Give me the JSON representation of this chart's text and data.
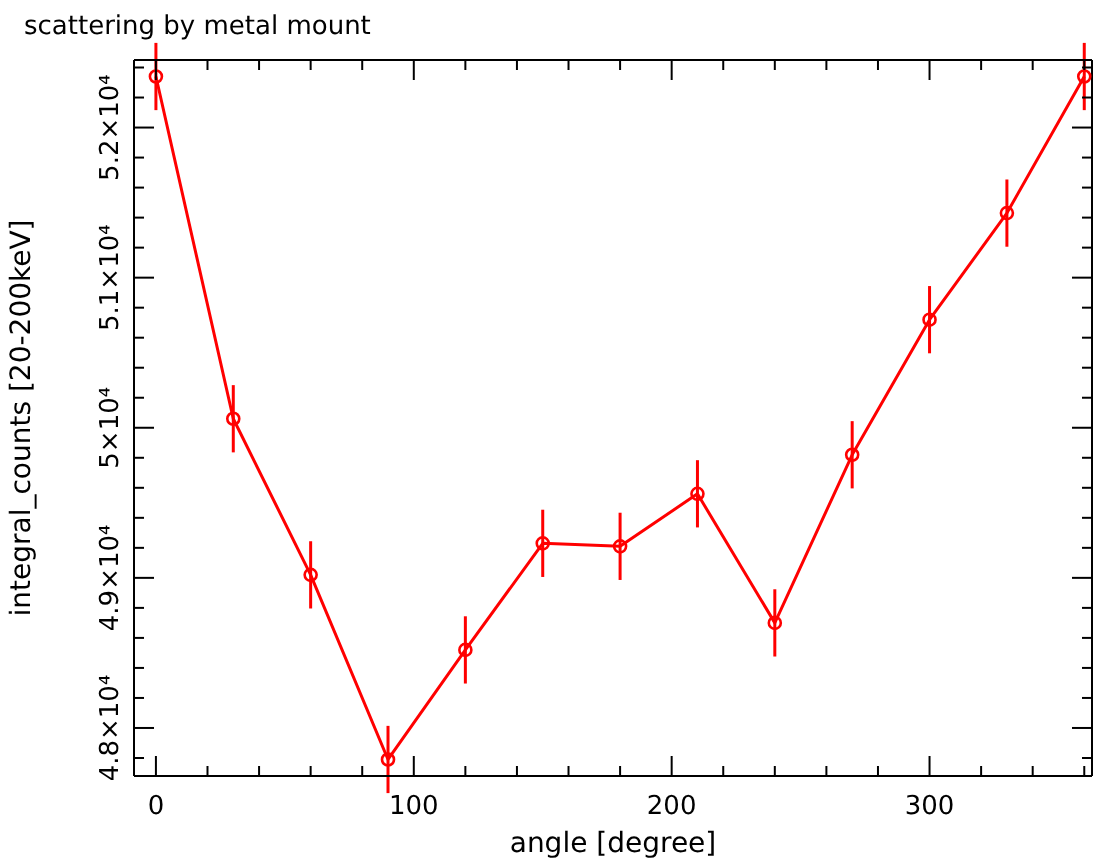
{
  "chart_data": {
    "type": "line",
    "title": "scattering by metal mount",
    "xlabel": "angle [degree]",
    "ylabel": "integral_counts [20-200keV]",
    "x": [
      0,
      30,
      60,
      90,
      120,
      150,
      180,
      210,
      240,
      270,
      300,
      330,
      360
    ],
    "series": [
      {
        "color": "#ff0000",
        "values": [
          52340,
          50060,
          49020,
          47790,
          48520,
          49230,
          49210,
          49560,
          48700,
          49820,
          50720,
          51430,
          52340
        ],
        "errors": [
          224,
          224,
          224,
          224,
          224,
          224,
          224,
          224,
          224,
          224,
          224,
          224,
          224
        ]
      }
    ],
    "xlim": [
      -8.5,
      363
    ],
    "xticks": [
      0,
      {
        "value": 20,
        "label": null
      },
      {
        "value": 40,
        "label": null
      },
      {
        "value": 60,
        "label": null
      },
      {
        "value": 80,
        "label": null
      },
      100,
      {
        "value": 120,
        "label": null
      },
      {
        "value": 140,
        "label": null
      },
      {
        "value": 160,
        "label": null
      },
      {
        "value": 180,
        "label": null
      },
      200,
      {
        "value": 220,
        "label": null
      },
      {
        "value": 240,
        "label": null
      },
      {
        "value": 260,
        "label": null
      },
      {
        "value": 280,
        "label": null
      },
      300,
      {
        "value": 320,
        "label": null
      },
      {
        "value": 340,
        "label": null
      },
      {
        "value": 360,
        "label": null
      }
    ],
    "ylim": [
      47680,
      52450
    ],
    "yticks": [
      {
        "value": 47800,
        "label": null
      },
      {
        "value": 48000,
        "label": "4.8×10⁴"
      },
      {
        "value": 48200,
        "label": null
      },
      {
        "value": 48400,
        "label": null
      },
      {
        "value": 48600,
        "label": null
      },
      {
        "value": 48800,
        "label": null
      },
      {
        "value": 49000,
        "label": "4.9×10⁴"
      },
      {
        "value": 49200,
        "label": null
      },
      {
        "value": 49400,
        "label": null
      },
      {
        "value": 49600,
        "label": null
      },
      {
        "value": 49800,
        "label": null
      },
      {
        "value": 50000,
        "label": "5×10⁴"
      },
      {
        "value": 50200,
        "label": null
      },
      {
        "value": 50400,
        "label": null
      },
      {
        "value": 50600,
        "label": null
      },
      {
        "value": 50800,
        "label": null
      },
      {
        "value": 51000,
        "label": "5.1×10⁴"
      },
      {
        "value": 51200,
        "label": null
      },
      {
        "value": 51400,
        "label": null
      },
      {
        "value": 51600,
        "label": null
      },
      {
        "value": 51800,
        "label": null
      },
      {
        "value": 52000,
        "label": "5.2×10⁴"
      },
      {
        "value": 52200,
        "label": null
      },
      {
        "value": 52400,
        "label": null
      }
    ],
    "grid": false,
    "marker": "circle",
    "line_style": "solid"
  }
}
